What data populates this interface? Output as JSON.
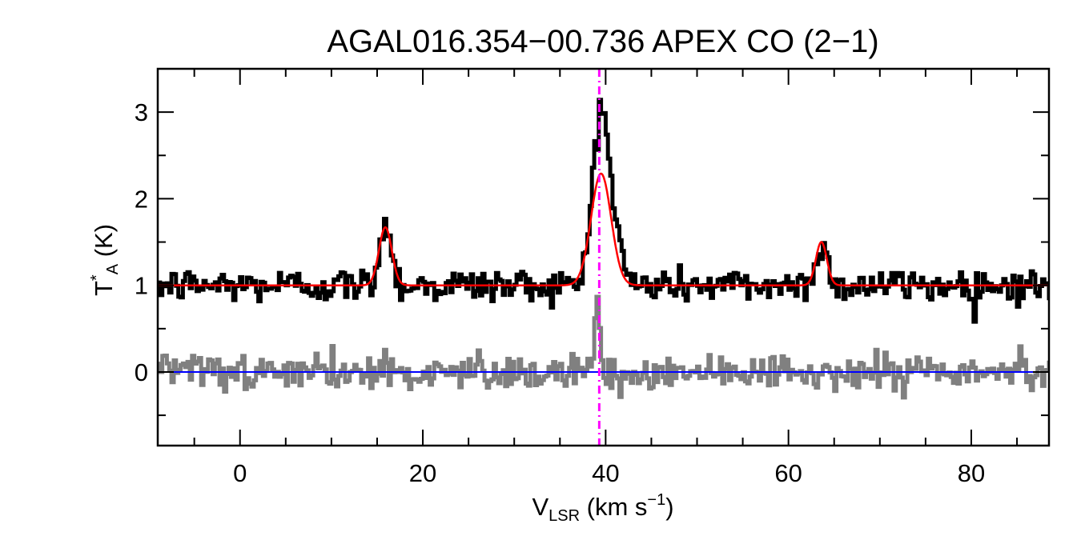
{
  "chart_data": {
    "type": "line",
    "title": "AGAL016.354−00.736  APEX CO (2−1)",
    "xlabel": {
      "main": "V",
      "sub": "LSR",
      "rest": " (km s",
      "sup": "−1",
      "end": ")"
    },
    "ylabel": {
      "main": "T",
      "sup": "*",
      "sub": "A",
      "rest": " (K)"
    },
    "xlim": [
      -9,
      88.5
    ],
    "ylim": [
      -0.85,
      3.5
    ],
    "x_ticks": [
      0,
      20,
      40,
      60,
      80
    ],
    "x_tick_labels": [
      "0",
      "20",
      "40",
      "60",
      "80"
    ],
    "x_minor_step": 5,
    "y_ticks": [
      0,
      1,
      2,
      3
    ],
    "y_tick_labels": [
      "0",
      "1",
      "2",
      "3"
    ],
    "y_minor_step": 0.5,
    "grid": false,
    "vline": {
      "x": 39.3,
      "color": "#ff00ff",
      "style": "dash-dot"
    },
    "series": [
      {
        "role": "observed-spectrum",
        "color": "#000000",
        "style": "step",
        "baseline": 1.0,
        "noise_rms": 0.1,
        "x_step": 0.25,
        "peaks": [
          {
            "center": 15.9,
            "amplitude": 0.72,
            "sigma": 0.65
          },
          {
            "center": 39.2,
            "amplitude": 1.45,
            "sigma": 0.75
          },
          {
            "center": 40.3,
            "amplitude": 1.05,
            "sigma": 1.0
          },
          {
            "center": 63.6,
            "amplitude": 0.52,
            "sigma": 0.55
          }
        ]
      },
      {
        "role": "gaussian-fit",
        "color": "#ff0000",
        "style": "line",
        "baseline": 1.0,
        "components": [
          {
            "center": 15.9,
            "amplitude": 0.67,
            "sigma": 0.7
          },
          {
            "center": 39.5,
            "amplitude": 1.29,
            "sigma": 1.1
          },
          {
            "center": 63.6,
            "amplitude": 0.5,
            "sigma": 0.6
          }
        ]
      },
      {
        "role": "residual",
        "color": "#808080",
        "style": "step",
        "baseline": 0.0,
        "noise_rms": 0.1,
        "x_step": 0.25,
        "peaks": [
          {
            "center": 39.1,
            "amplitude": 0.8,
            "sigma": 0.3
          }
        ]
      },
      {
        "role": "zero-line",
        "color": "#0000ff",
        "style": "line",
        "value": 0.0
      }
    ]
  }
}
